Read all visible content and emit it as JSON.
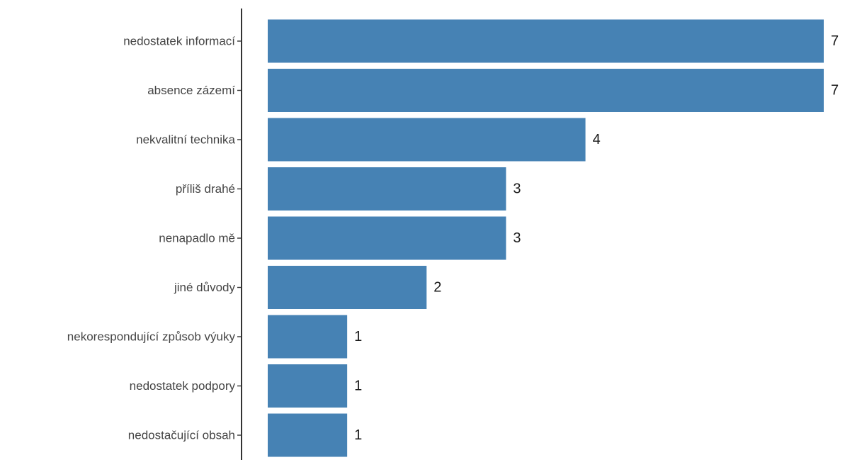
{
  "chart_data": {
    "type": "bar",
    "orientation": "horizontal",
    "title": "",
    "xlabel": "",
    "ylabel": "",
    "categories": [
      "nedostatek informací",
      "absence zázemí",
      "nekvalitní technika",
      "příliš drahé",
      "nenapadlo mě",
      "jiné důvody",
      "nekorespondující způsob výuky",
      "nedostatek podpory",
      "nedostačující obsah"
    ],
    "values": [
      7,
      7,
      4,
      3,
      3,
      2,
      1,
      1,
      1
    ],
    "xlim": [
      0,
      7
    ],
    "grid": false,
    "legend": "none",
    "bar_color": "#4682b4",
    "data_labels": true
  }
}
